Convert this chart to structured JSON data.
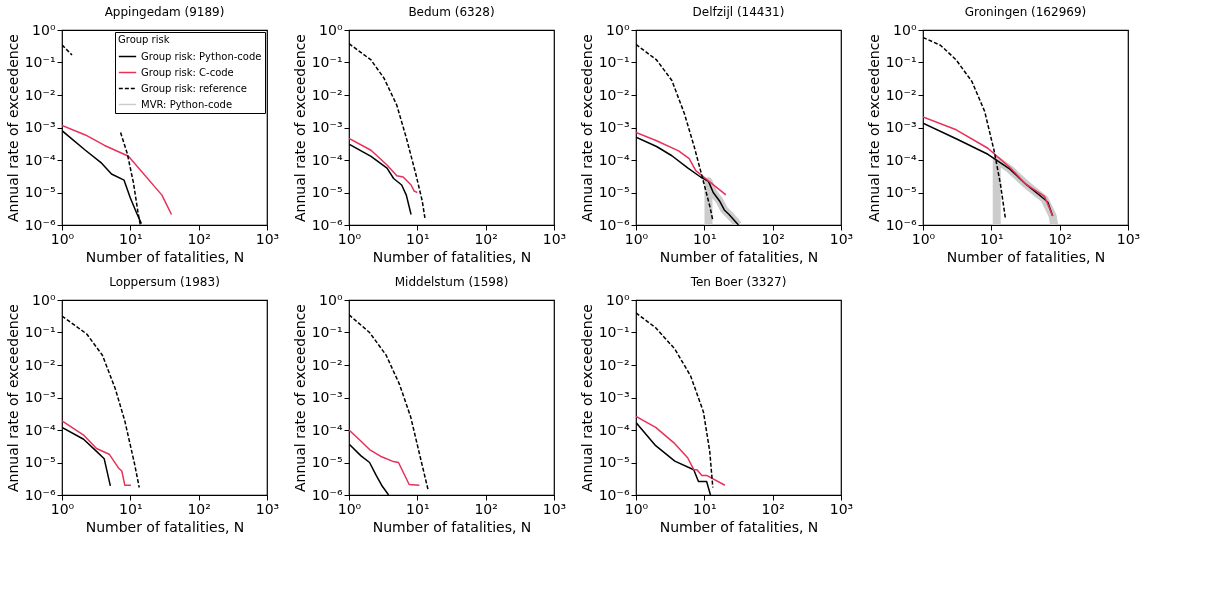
{
  "chart_data": [
    {
      "type": "line",
      "title": "Appingedam (9189)",
      "xlabel": "Number of fatalities, N",
      "ylabel": "Annual rate of exceedence",
      "log": "xy",
      "xlim": [
        1,
        1000
      ],
      "ylim": [
        1e-06,
        1
      ],
      "xticks": [
        {
          "value": 1,
          "label": "10⁰"
        },
        {
          "value": 10,
          "label": "10¹"
        },
        {
          "value": 100,
          "label": "10²"
        },
        {
          "value": 1000,
          "label": "10³"
        }
      ],
      "yticks": [
        {
          "value": 1e-06,
          "label": "10⁻⁶"
        },
        {
          "value": 1e-05,
          "label": "10⁻⁵"
        },
        {
          "value": 0.0001,
          "label": "10⁻⁴"
        },
        {
          "value": 0.001,
          "label": "10⁻³"
        },
        {
          "value": 0.01,
          "label": "10⁻²"
        },
        {
          "value": 0.1,
          "label": "10⁻¹"
        },
        {
          "value": 1,
          "label": "10⁰"
        }
      ],
      "grid": false,
      "legend": "top right",
      "legend_title": "Group risk",
      "series": [
        {
          "name": "Group risk: Python-code",
          "color": "#000000",
          "x": [
            1,
            2.2,
            3.8,
            5.3,
            8.1,
            10,
            12.4,
            14.5
          ],
          "values": [
            0.0008,
            0.0002,
            8e-05,
            3.7e-05,
            2.4e-05,
            6.8e-06,
            2.3e-06,
            1.1e-06
          ]
        },
        {
          "name": "Group risk: C-code",
          "color": "#e8305a",
          "x": [
            1,
            2.2,
            4.2,
            9.4,
            29,
            40
          ],
          "values": [
            0.00115,
            0.00059,
            0.00028,
            0.00013,
            8.3e-06,
            2.1e-06
          ]
        },
        {
          "name": "Group risk: reference",
          "color": "#000000",
          "line_style": "dashed",
          "x": [
            1,
            1.4,
            2.5,
            4.2,
            7.2,
            9,
            11.1,
            13,
            14
          ],
          "values": [
            0.35,
            0.17,
            null,
            null,
            0.0007,
            0.00016,
            2e-05,
            2.3e-06,
            1e-06
          ]
        },
        {
          "name": "MVR: Python-code",
          "color": "#cccccc"
        }
      ]
    },
    {
      "type": "line",
      "title": "Bedum (6328)",
      "xlabel": "Number of fatalities, N",
      "ylabel": "Annual rate of exceedence",
      "log": "xy",
      "xlim": [
        1,
        1000
      ],
      "ylim": [
        1e-06,
        1
      ],
      "xticks": [
        {
          "value": 1,
          "label": "10⁰"
        },
        {
          "value": 10,
          "label": "10¹"
        },
        {
          "value": 100,
          "label": "10²"
        },
        {
          "value": 1000,
          "label": "10³"
        }
      ],
      "yticks": [
        {
          "value": 1e-06,
          "label": "10⁻⁶"
        },
        {
          "value": 1e-05,
          "label": "10⁻⁵"
        },
        {
          "value": 0.0001,
          "label": "10⁻⁴"
        },
        {
          "value": 0.001,
          "label": "10⁻³"
        },
        {
          "value": 0.01,
          "label": "10⁻²"
        },
        {
          "value": 0.1,
          "label": "10⁻¹"
        },
        {
          "value": 1,
          "label": "10⁰"
        }
      ],
      "grid": false,
      "series": [
        {
          "color": "#000000",
          "x": [
            1,
            2.1,
            3.6,
            4.5,
            5.9,
            6.9,
            8.1
          ],
          "values": [
            0.00031,
            0.00013,
            5.6e-05,
            2.7e-05,
            1.7e-05,
            8.3e-06,
            2.1e-06
          ]
        },
        {
          "color": "#e8305a",
          "x": [
            1,
            2.1,
            3.6,
            5,
            6.2,
            8.1,
            9,
            10
          ],
          "values": [
            0.00046,
            0.0002,
            7e-05,
            3.3e-05,
            3e-05,
            1.7e-05,
            1.1e-05,
            1e-05
          ]
        },
        {
          "color": "#000000",
          "line_style": "dashed",
          "x": [
            1,
            2.1,
            3.25,
            5,
            6.9,
            9.5,
            11.8,
            13
          ],
          "values": [
            0.38,
            0.12,
            0.033,
            0.0049,
            0.00048,
            3.7e-05,
            5.5e-06,
            1.5e-06
          ]
        }
      ]
    },
    {
      "type": "line",
      "title": "Delfzijl (14431)",
      "xlabel": "Number of fatalities, N",
      "ylabel": "Annual rate of exceedence",
      "log": "xy",
      "xlim": [
        1,
        1000
      ],
      "ylim": [
        1e-06,
        1
      ],
      "xticks": [
        {
          "value": 1,
          "label": "10⁰"
        },
        {
          "value": 10,
          "label": "10¹"
        },
        {
          "value": 100,
          "label": "10²"
        },
        {
          "value": 1000,
          "label": "10³"
        }
      ],
      "yticks": [
        {
          "value": 1e-06,
          "label": "10⁻⁶"
        },
        {
          "value": 1e-05,
          "label": "10⁻⁵"
        },
        {
          "value": 0.0001,
          "label": "10⁻⁴"
        },
        {
          "value": 0.001,
          "label": "10⁻³"
        },
        {
          "value": 0.01,
          "label": "10⁻²"
        },
        {
          "value": 0.1,
          "label": "10⁻¹"
        },
        {
          "value": 1,
          "label": "10⁰"
        }
      ],
      "grid": false,
      "series": [
        {
          "color": "#000000",
          "x": [
            1,
            2,
            3.35,
            5.7,
            8.8,
            11.5,
            13.5,
            16.7,
            19.6,
            23,
            31.6
          ],
          "values": [
            0.0005,
            0.00026,
            0.000135,
            5.7e-05,
            3e-05,
            2.2e-05,
            1e-05,
            5.5e-06,
            2.9e-06,
            2.1e-06,
            1e-06
          ]
        },
        {
          "color": "#e8305a",
          "x": [
            1,
            2,
            4.2,
            6,
            7.5,
            10.9,
            20.7
          ],
          "values": [
            0.0007,
            0.00039,
            0.00019,
            0.00011,
            4.7e-05,
            2.5e-05,
            8.5e-06
          ]
        },
        {
          "color": "#000000",
          "line_style": "dashed",
          "x": [
            1,
            2,
            3.35,
            5.1,
            7.1,
            9.8,
            12.1,
            13.2
          ],
          "values": [
            0.36,
            0.12,
            0.028,
            0.0027,
            0.00026,
            2e-05,
            3.6e-06,
            1.5e-06
          ]
        },
        {
          "color": "#cccccc",
          "x": [
            11.5,
            11.5,
            13.5,
            16.7,
            19.6,
            23,
            31.6
          ],
          "values": [
            1e-06,
            2.2e-05,
            1e-05,
            5.5e-06,
            2.9e-06,
            2.1e-06,
            1e-06
          ]
        }
      ]
    },
    {
      "type": "line",
      "title": "Groningen (162969)",
      "xlabel": "Number of fatalities, N",
      "ylabel": "Annual rate of exceedence",
      "log": "xy",
      "xlim": [
        1,
        1000
      ],
      "ylim": [
        1e-06,
        1
      ],
      "xticks": [
        {
          "value": 1,
          "label": "10⁰"
        },
        {
          "value": 10,
          "label": "10¹"
        },
        {
          "value": 100,
          "label": "10²"
        },
        {
          "value": 1000,
          "label": "10³"
        }
      ],
      "yticks": [
        {
          "value": 1e-06,
          "label": "10⁻⁶"
        },
        {
          "value": 1e-05,
          "label": "10⁻⁵"
        },
        {
          "value": 0.0001,
          "label": "10⁻⁴"
        },
        {
          "value": 0.001,
          "label": "10⁻³"
        },
        {
          "value": 0.01,
          "label": "10⁻²"
        },
        {
          "value": 0.1,
          "label": "10⁻¹"
        },
        {
          "value": 1,
          "label": "10⁰"
        }
      ],
      "grid": false,
      "series": [
        {
          "color": "#000000",
          "x": [
            1,
            3.06,
            8.9,
            18.7,
            32,
            60,
            67,
            79
          ],
          "values": [
            0.00135,
            0.00045,
            0.00015,
            5.2e-05,
            1.8e-05,
            6.2e-06,
            5e-06,
            1.9e-06
          ]
        },
        {
          "color": "#e8305a",
          "x": [
            1,
            3.06,
            8.9,
            18.7,
            32,
            60,
            79
          ],
          "values": [
            0.0021,
            0.00085,
            0.00023,
            5.9e-05,
            1.8e-05,
            7.6e-06,
            1.9e-06
          ]
        },
        {
          "color": "#000000",
          "line_style": "dashed",
          "x": [
            1,
            1.8,
            3.06,
            5.2,
            8,
            11,
            13.6,
            16
          ],
          "values": [
            0.59,
            0.34,
            0.12,
            0.026,
            0.0031,
            0.00019,
            1.8e-05,
            1.7e-06
          ]
        },
        {
          "color": "#cccccc",
          "x": [
            12,
            12,
            18.7,
            32,
            60,
            79,
            83
          ],
          "values": [
            1e-06,
            0.0001,
            5.2e-05,
            1.8e-05,
            6.2e-06,
            1.9e-06,
            1e-06
          ]
        }
      ]
    },
    {
      "type": "line",
      "title": "Loppersum (1983)",
      "xlabel": "Number of fatalities, N",
      "ylabel": "Annual rate of exceedence",
      "log": "xy",
      "xlim": [
        1,
        1000
      ],
      "ylim": [
        1e-06,
        1
      ],
      "xticks": [
        {
          "value": 1,
          "label": "10⁰"
        },
        {
          "value": 10,
          "label": "10¹"
        },
        {
          "value": 100,
          "label": "10²"
        },
        {
          "value": 1000,
          "label": "10³"
        }
      ],
      "yticks": [
        {
          "value": 1e-06,
          "label": "10⁻⁶"
        },
        {
          "value": 1e-05,
          "label": "10⁻⁵"
        },
        {
          "value": 0.0001,
          "label": "10⁻⁴"
        },
        {
          "value": 0.001,
          "label": "10⁻³"
        },
        {
          "value": 0.01,
          "label": "10⁻²"
        },
        {
          "value": 0.1,
          "label": "10⁻¹"
        },
        {
          "value": 1,
          "label": "10⁰"
        }
      ],
      "grid": false,
      "series": [
        {
          "color": "#000000",
          "x": [
            1,
            2.07,
            3.2,
            4.15,
            5.1
          ],
          "values": [
            0.00012,
            5.2e-05,
            2.2e-05,
            1.3e-05,
            1.9e-06
          ]
        },
        {
          "color": "#e8305a",
          "x": [
            1,
            2.07,
            3.2,
            4.9,
            6.7,
            7.5,
            8.3,
            10.2
          ],
          "values": [
            0.00019,
            7e-05,
            2.7e-05,
            1.8e-05,
            6.8e-06,
            5.5e-06,
            2e-06,
            2e-06
          ]
        },
        {
          "color": "#000000",
          "line_style": "dashed",
          "x": [
            1,
            2.3,
            3.9,
            6,
            8.3,
            11.5,
            13.5
          ],
          "values": [
            0.32,
            0.09,
            0.02,
            0.0019,
            0.00019,
            9.3e-06,
            1.7e-06
          ]
        }
      ]
    },
    {
      "type": "line",
      "title": "Middelstum (1598)",
      "xlabel": "Number of fatalities, N",
      "ylabel": "Annual rate of exceedence",
      "log": "xy",
      "xlim": [
        1,
        1000
      ],
      "ylim": [
        1e-06,
        1
      ],
      "xticks": [
        {
          "value": 1,
          "label": "10⁰"
        },
        {
          "value": 10,
          "label": "10¹"
        },
        {
          "value": 100,
          "label": "10²"
        },
        {
          "value": 1000,
          "label": "10³"
        }
      ],
      "yticks": [
        {
          "value": 1e-06,
          "label": "10⁻⁶"
        },
        {
          "value": 1e-05,
          "label": "10⁻⁵"
        },
        {
          "value": 0.0001,
          "label": "10⁻⁴"
        },
        {
          "value": 0.001,
          "label": "10⁻³"
        },
        {
          "value": 0.01,
          "label": "10⁻²"
        },
        {
          "value": 0.1,
          "label": "10⁻¹"
        },
        {
          "value": 1,
          "label": "10⁰"
        }
      ],
      "grid": false,
      "series": [
        {
          "color": "#000000",
          "x": [
            1,
            1.5,
            2,
            2.5,
            3,
            3.8
          ],
          "values": [
            3.7e-05,
            1.6e-05,
            1e-05,
            4e-06,
            2e-06,
            1e-06
          ]
        },
        {
          "color": "#e8305a",
          "x": [
            1,
            1.5,
            2,
            3,
            4.3,
            5.3,
            7.6,
            10.7
          ],
          "values": [
            0.0001,
            4.5e-05,
            2.5e-05,
            1.5e-05,
            1.1e-05,
            1e-05,
            2.1e-06,
            2e-06
          ]
        },
        {
          "color": "#000000",
          "line_style": "dashed",
          "x": [
            1,
            2,
            3.5,
            5.5,
            8,
            11,
            14.3
          ],
          "values": [
            0.35,
            0.1,
            0.02,
            0.0025,
            0.00025,
            1.5e-05,
            1.5e-06
          ]
        }
      ]
    },
    {
      "type": "line",
      "title": "Ten Boer (3327)",
      "xlabel": "Number of fatalities, N",
      "ylabel": "Annual rate of exceedence",
      "log": "xy",
      "xlim": [
        1,
        1000
      ],
      "ylim": [
        1e-06,
        1
      ],
      "xticks": [
        {
          "value": 1,
          "label": "10⁰"
        },
        {
          "value": 10,
          "label": "10¹"
        },
        {
          "value": 100,
          "label": "10²"
        },
        {
          "value": 1000,
          "label": "10³"
        }
      ],
      "yticks": [
        {
          "value": 1e-06,
          "label": "10⁻⁶"
        },
        {
          "value": 1e-05,
          "label": "10⁻⁵"
        },
        {
          "value": 0.0001,
          "label": "10⁻⁴"
        },
        {
          "value": 0.001,
          "label": "10⁻³"
        },
        {
          "value": 0.01,
          "label": "10⁻²"
        },
        {
          "value": 0.1,
          "label": "10⁻¹"
        },
        {
          "value": 1,
          "label": "10⁰"
        }
      ],
      "grid": false,
      "series": [
        {
          "color": "#000000",
          "x": [
            1,
            1.94,
            3.7,
            7,
            8.2,
            10.8,
            12.3
          ],
          "values": [
            0.00017,
            3.3e-05,
            1.1e-05,
            6e-06,
            2.6e-06,
            2.6e-06,
            1e-06
          ]
        },
        {
          "color": "#e8305a",
          "x": [
            1,
            1.94,
            3.7,
            5.7,
            7,
            7.8,
            9.2,
            10.8,
            20
          ],
          "values": [
            0.00026,
            0.00012,
            3.8e-05,
            1.4e-05,
            6e-06,
            6e-06,
            4e-06,
            4e-06,
            2e-06
          ]
        },
        {
          "color": "#000000",
          "line_style": "dashed",
          "x": [
            1,
            1.94,
            3.7,
            6.3,
            9.7,
            12,
            13.3
          ],
          "values": [
            0.4,
            0.14,
            0.031,
            0.0046,
            0.00036,
            2.2e-05,
            1.7e-06
          ]
        }
      ]
    }
  ]
}
